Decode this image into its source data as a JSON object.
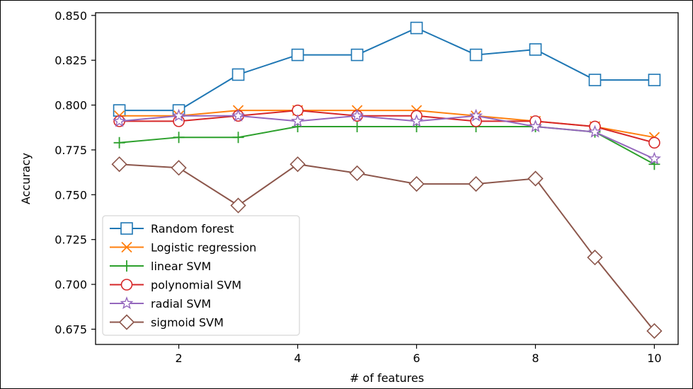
{
  "chart_data": {
    "type": "line",
    "title": "",
    "xlabel": "# of features",
    "ylabel": "Accuracy",
    "x": [
      1,
      2,
      3,
      4,
      5,
      6,
      7,
      8,
      9,
      10
    ],
    "xlim": [
      0.6,
      10.4
    ],
    "ylim": [
      0.6665,
      0.8515
    ],
    "xticks": [
      2,
      4,
      6,
      8,
      10
    ],
    "yticks": [
      0.675,
      0.7,
      0.725,
      0.75,
      0.775,
      0.8,
      0.825,
      0.85
    ],
    "xtick_labels": [
      "2",
      "4",
      "6",
      "8",
      "10"
    ],
    "ytick_labels": [
      "0.675",
      "0.700",
      "0.725",
      "0.750",
      "0.775",
      "0.800",
      "0.825",
      "0.850"
    ],
    "grid": false,
    "legend_position": "lower-left",
    "series": [
      {
        "name": "Random forest",
        "color": "#1f77b4",
        "marker": "square",
        "values": [
          0.797,
          0.797,
          0.817,
          0.828,
          0.828,
          0.843,
          0.828,
          0.831,
          0.814,
          0.814
        ]
      },
      {
        "name": "Logistic regression",
        "color": "#ff7f0e",
        "marker": "x",
        "values": [
          0.794,
          0.794,
          0.797,
          0.797,
          0.797,
          0.797,
          0.794,
          0.791,
          0.788,
          0.782
        ]
      },
      {
        "name": "linear SVM",
        "color": "#2ca02c",
        "marker": "plus",
        "values": [
          0.779,
          0.782,
          0.782,
          0.788,
          0.788,
          0.788,
          0.788,
          0.788,
          0.785,
          0.767
        ]
      },
      {
        "name": "polynomial SVM",
        "color": "#d62728",
        "marker": "circle",
        "values": [
          0.791,
          0.791,
          0.794,
          0.797,
          0.794,
          0.794,
          0.791,
          0.791,
          0.788,
          0.779
        ]
      },
      {
        "name": "radial SVM",
        "color": "#9467bd",
        "marker": "star",
        "values": [
          0.791,
          0.794,
          0.794,
          0.791,
          0.794,
          0.791,
          0.794,
          0.788,
          0.785,
          0.77
        ]
      },
      {
        "name": "sigmoid SVM",
        "color": "#8c564b",
        "marker": "diamond",
        "values": [
          0.767,
          0.765,
          0.744,
          0.767,
          0.762,
          0.756,
          0.756,
          0.759,
          0.715,
          0.674
        ]
      }
    ]
  }
}
